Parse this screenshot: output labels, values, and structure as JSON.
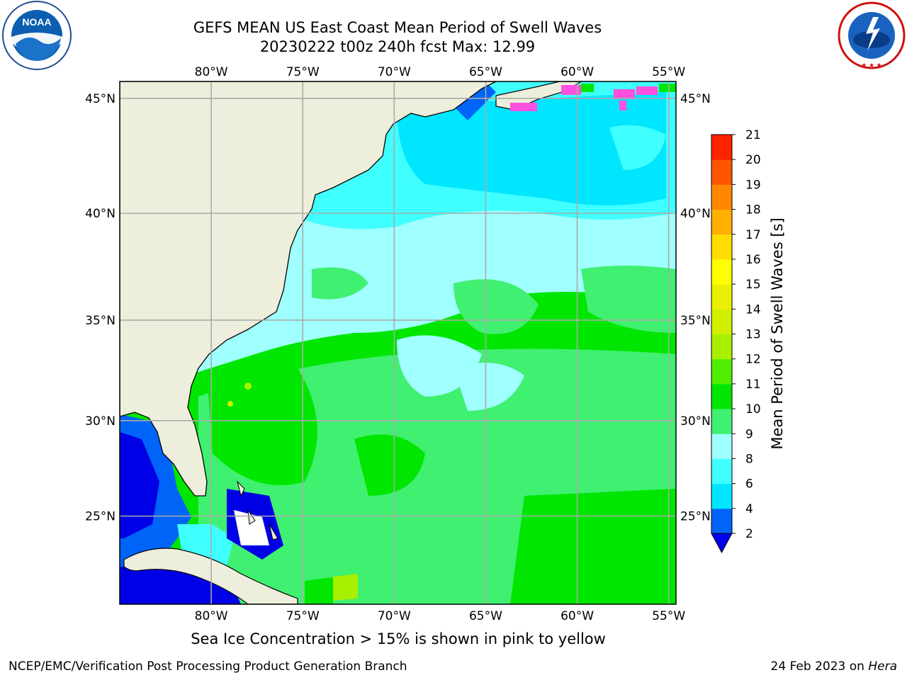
{
  "header": {
    "title_line1": "GEFS MEAN US East Coast Mean Period of Swell Waves",
    "title_line2": "20230222 t00z 240h fcst   Max: 12.99"
  },
  "logos": {
    "left": {
      "name": "noaa-logo",
      "text": "NOAA",
      "ring_text": "NATIONAL OCEANIC AND ATMOSPHERIC ADMINISTRATION · U.S. DEPARTMENT OF COMMERCE"
    },
    "right": {
      "name": "nws-logo",
      "ring_text": "NATIONAL WEATHER SERVICE"
    }
  },
  "map": {
    "lon_labels": [
      "80°W",
      "75°W",
      "70°W",
      "65°W",
      "60°W",
      "55°W"
    ],
    "lat_labels": [
      "45°N",
      "40°N",
      "35°N",
      "30°N",
      "25°N"
    ],
    "lon_values": [
      -80,
      -75,
      -70,
      -65,
      -60,
      -55
    ],
    "lat_values": [
      45,
      40,
      35,
      30,
      25
    ],
    "lon_range": [
      -85,
      -54.6
    ],
    "lat_range": [
      20.2,
      45.7
    ],
    "grid": true,
    "colors": {
      "land": "#eeeedc",
      "gulf_shelf": "#0064f8",
      "gulf_deep": "#0000e6",
      "cyan": "#00e6ff",
      "light_cyan": "#40ffff",
      "pale_cyan": "#a0ffff",
      "light_green": "#40f070",
      "green": "#00e600",
      "yellow_green": "#a8f000",
      "sea_ice_pink": "#ff50e0"
    }
  },
  "colorbar": {
    "label": "Mean Period of Swell Waves [s]",
    "extend": "min",
    "extend_color": "#0000ee",
    "ticks": [
      "2",
      "4",
      "6",
      "8",
      "9",
      "10",
      "11",
      "12",
      "13",
      "14",
      "15",
      "16",
      "17",
      "18",
      "19",
      "20",
      "21"
    ],
    "bands": [
      "#0064f8",
      "#00e6ff",
      "#40ffff",
      "#a0ffff",
      "#40f070",
      "#00e600",
      "#50ee00",
      "#a8f000",
      "#d0f000",
      "#e8f000",
      "#ffff00",
      "#ffdd00",
      "#ffb000",
      "#ff8800",
      "#ff5500",
      "#ff2200"
    ]
  },
  "sea_ice_note": "Sea Ice Concentration > 15% is shown in pink to yellow",
  "footer": {
    "left": "NCEP/EMC/Verification Post Processing Product Generation Branch",
    "right_prefix": "24 Feb 2023 on ",
    "right_machine": "Hera"
  }
}
